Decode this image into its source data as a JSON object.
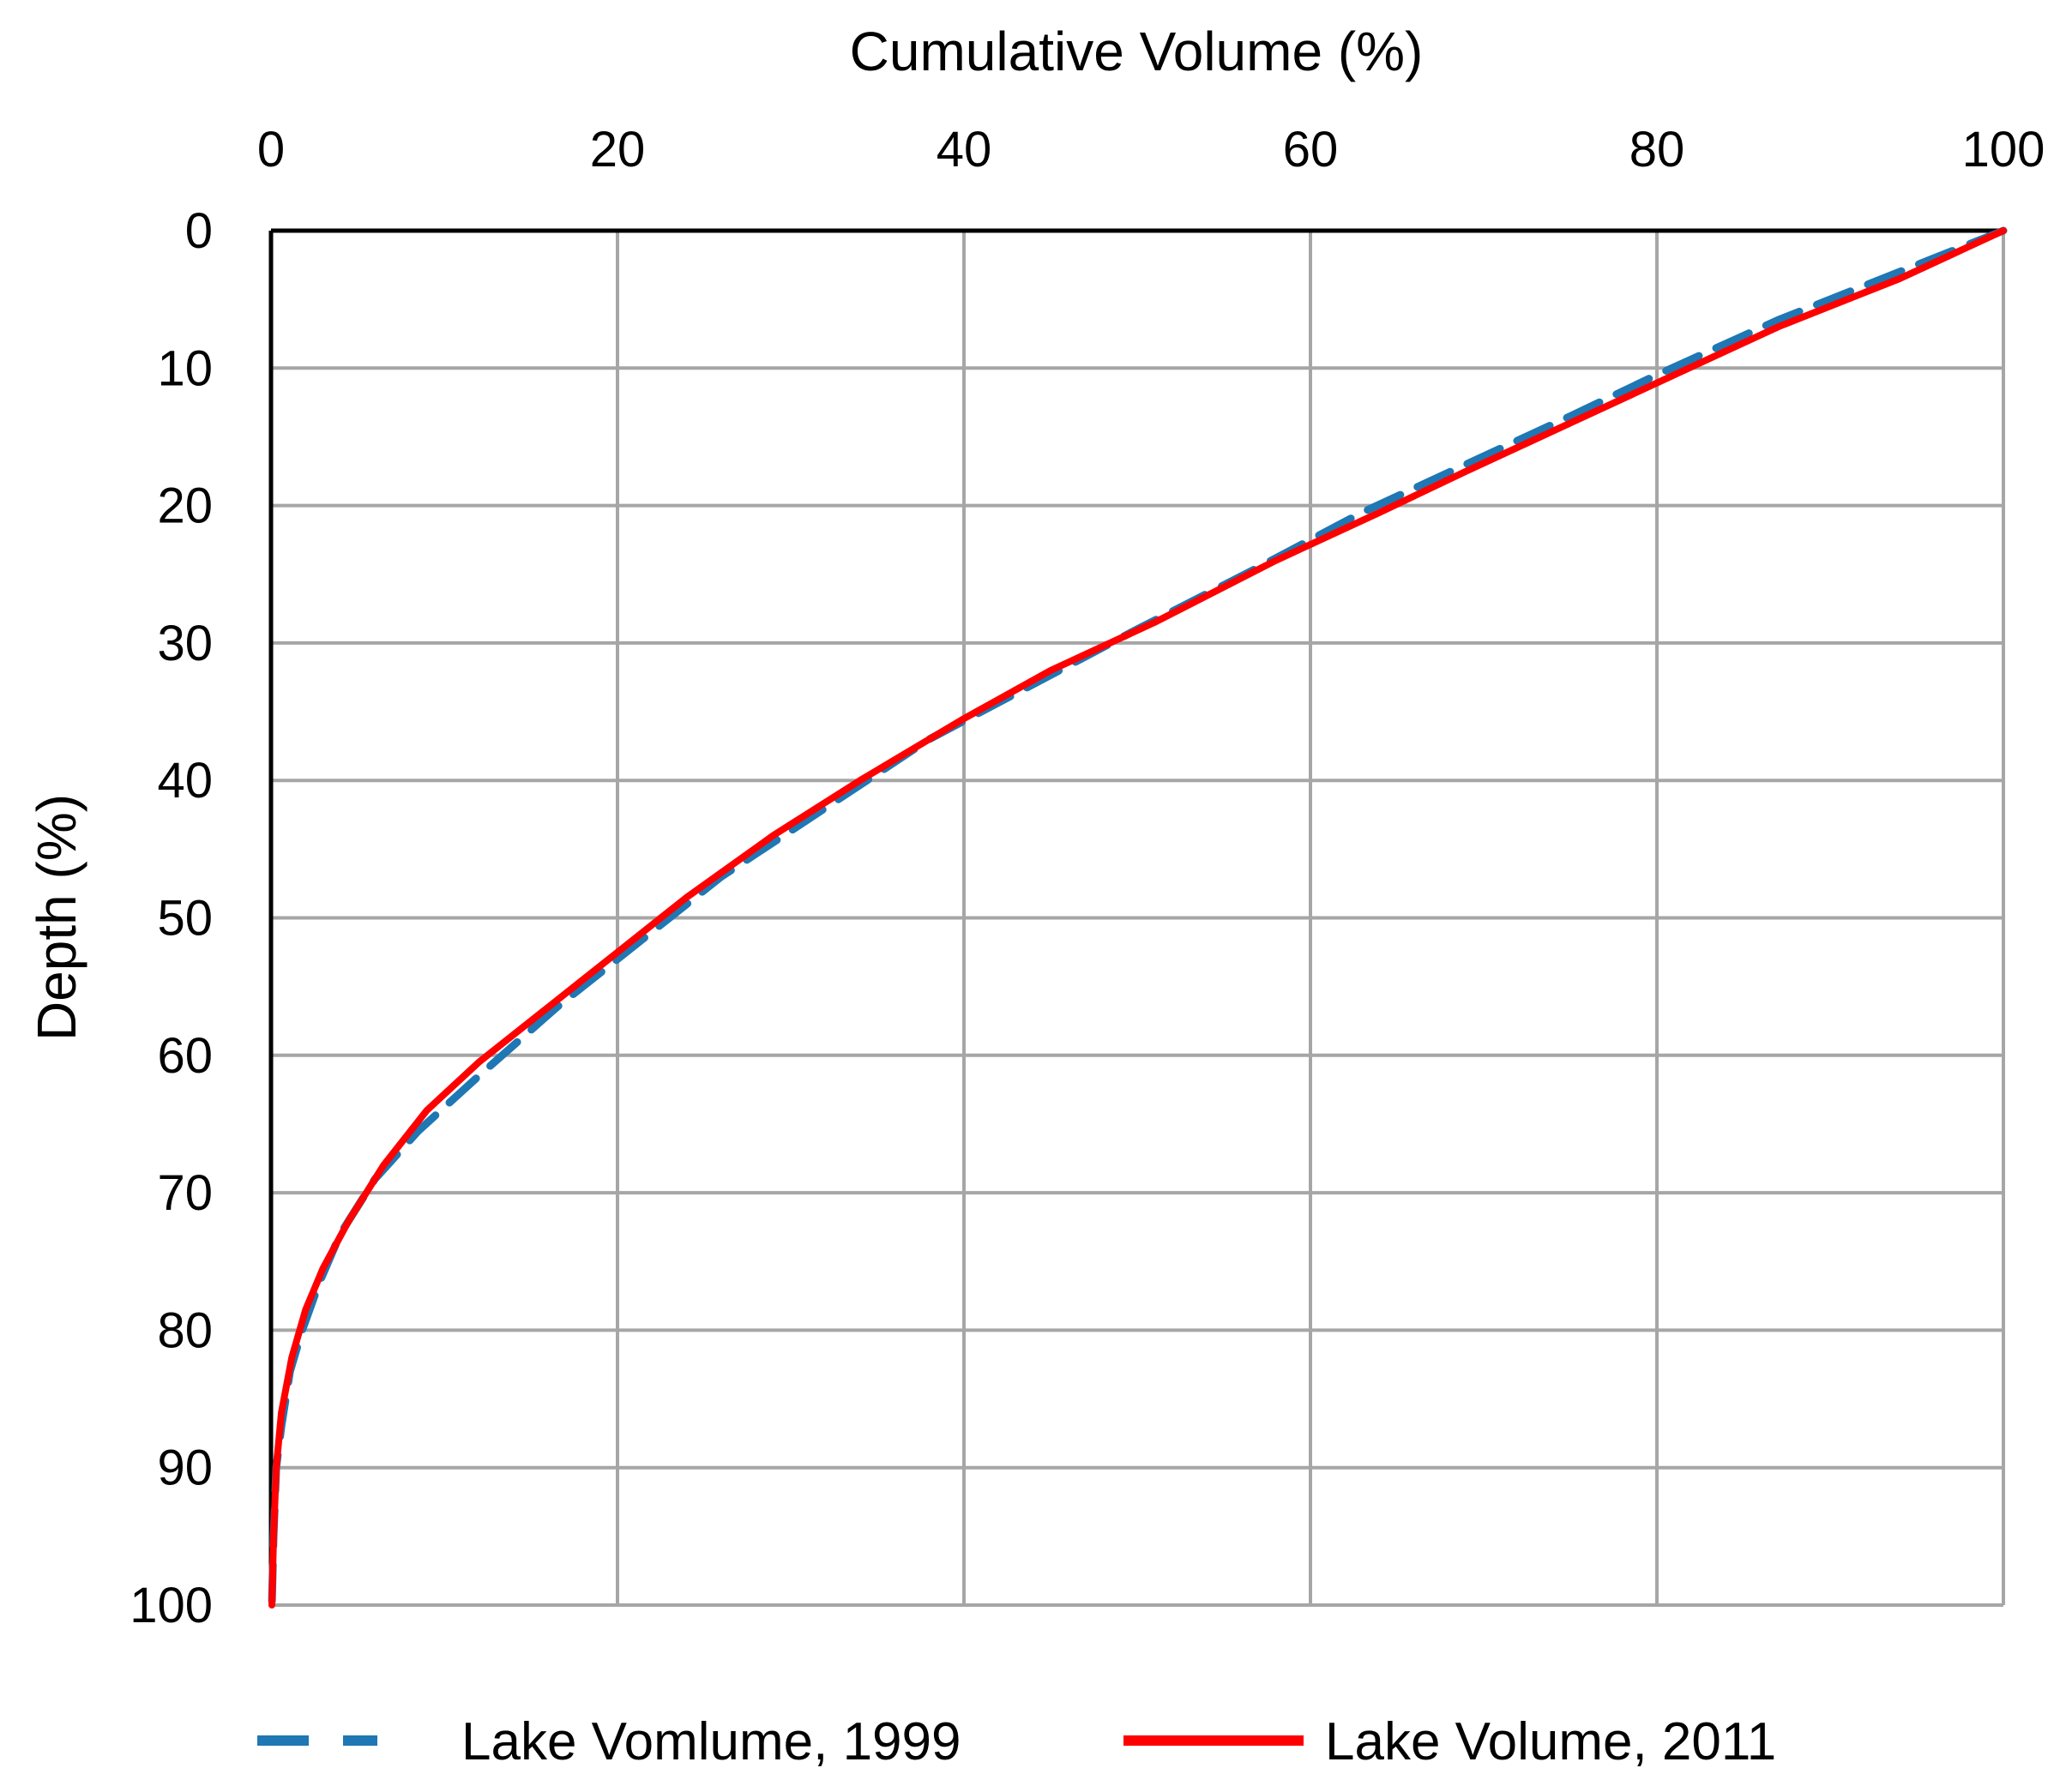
{
  "chart_data": {
    "type": "line",
    "title": "",
    "xlabel": "Cumulative Volume (%)",
    "ylabel": "Depth (%)",
    "x_axis_position": "top",
    "y_axis_inverted": true,
    "xlim": [
      0,
      100
    ],
    "ylim": [
      0,
      100
    ],
    "xticks": [
      "0",
      "20",
      "40",
      "60",
      "80",
      "100"
    ],
    "yticks": [
      "0",
      "10",
      "20",
      "30",
      "40",
      "50",
      "60",
      "70",
      "80",
      "90",
      "100"
    ],
    "grid": true,
    "legend_position": "bottom",
    "series": [
      {
        "name": "Lake Vomlume, 1999",
        "color": "#1f77b4",
        "style": "dashed",
        "points": [
          [
            100,
            0
          ],
          [
            94,
            3
          ],
          [
            87,
            6.5
          ],
          [
            80,
            10.5
          ],
          [
            75,
            13.5
          ],
          [
            69,
            17
          ],
          [
            63,
            20.5
          ],
          [
            57,
            24.5
          ],
          [
            50,
            29
          ],
          [
            44,
            33
          ],
          [
            38,
            37
          ],
          [
            32,
            42
          ],
          [
            26,
            47
          ],
          [
            21,
            52
          ],
          [
            16.5,
            56.5
          ],
          [
            12,
            61.5
          ],
          [
            8.5,
            65.5
          ],
          [
            6,
            69
          ],
          [
            4,
            73
          ],
          [
            2.8,
            76.5
          ],
          [
            1.8,
            80
          ],
          [
            1.1,
            83
          ],
          [
            0.6,
            87
          ],
          [
            0.3,
            90
          ],
          [
            0.15,
            95
          ],
          [
            0.05,
            100
          ]
        ]
      },
      {
        "name": "Lake Volume, 2011",
        "color": "#ff0000",
        "style": "solid",
        "points": [
          [
            100,
            0
          ],
          [
            94,
            3.5
          ],
          [
            87,
            7
          ],
          [
            81,
            10.5
          ],
          [
            75,
            14
          ],
          [
            69,
            17.5
          ],
          [
            64,
            20.5
          ],
          [
            58,
            24
          ],
          [
            51,
            28.5
          ],
          [
            45,
            32
          ],
          [
            40,
            35.5
          ],
          [
            34,
            40
          ],
          [
            29,
            44
          ],
          [
            24,
            48.5
          ],
          [
            20,
            52.5
          ],
          [
            16,
            56.5
          ],
          [
            12,
            60.5
          ],
          [
            9,
            64
          ],
          [
            6.5,
            68
          ],
          [
            4.5,
            72
          ],
          [
            3,
            75.5
          ],
          [
            2,
            78.5
          ],
          [
            1.2,
            82
          ],
          [
            0.6,
            86
          ],
          [
            0.3,
            90
          ],
          [
            0.15,
            95
          ],
          [
            0.05,
            100
          ]
        ]
      }
    ]
  }
}
